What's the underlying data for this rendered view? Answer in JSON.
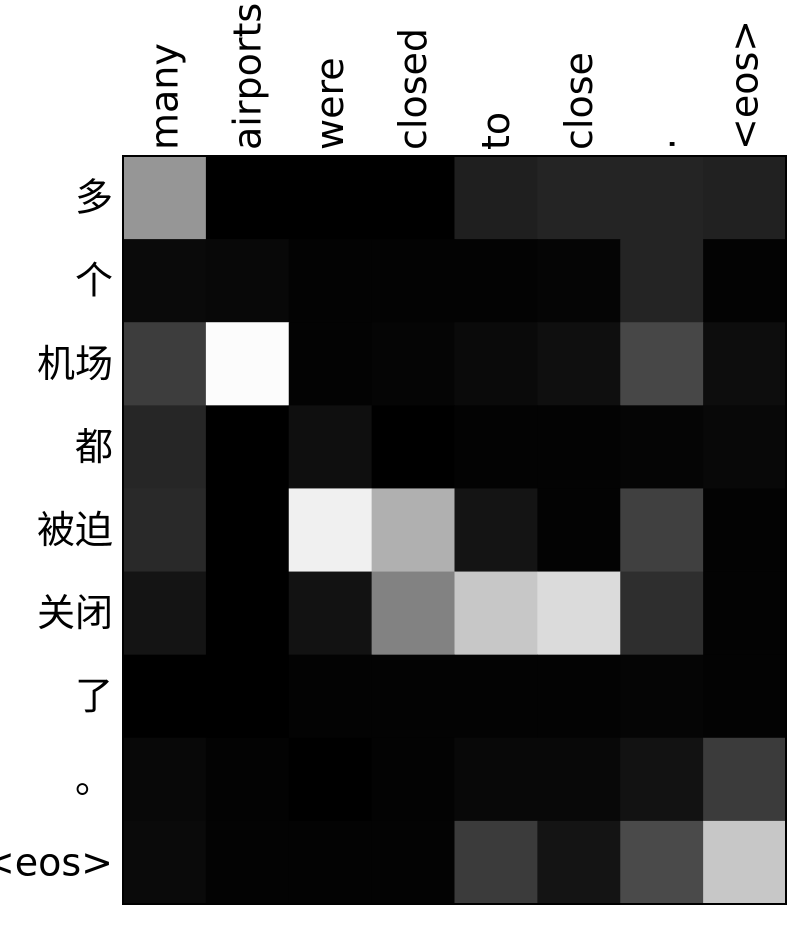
{
  "chart_data": {
    "type": "heatmap",
    "x_labels": [
      "many",
      "airports",
      "were",
      "closed",
      "to",
      "close",
      ".",
      "<eos>"
    ],
    "y_labels": [
      "多",
      "个",
      "机场",
      "都",
      "被迫",
      "关闭",
      "了",
      "。",
      "<eos>"
    ],
    "values": [
      [
        0.59,
        0.0,
        0.0,
        0.0,
        0.12,
        0.14,
        0.14,
        0.13
      ],
      [
        0.04,
        0.03,
        0.01,
        0.01,
        0.01,
        0.02,
        0.14,
        0.01
      ],
      [
        0.24,
        0.99,
        0.01,
        0.02,
        0.04,
        0.06,
        0.28,
        0.05
      ],
      [
        0.15,
        0.0,
        0.06,
        0.0,
        0.01,
        0.01,
        0.02,
        0.03
      ],
      [
        0.16,
        0.0,
        0.94,
        0.69,
        0.08,
        0.01,
        0.25,
        0.01
      ],
      [
        0.08,
        0.0,
        0.07,
        0.51,
        0.78,
        0.86,
        0.18,
        0.01
      ],
      [
        0.0,
        0.0,
        0.01,
        0.01,
        0.01,
        0.01,
        0.02,
        0.01
      ],
      [
        0.03,
        0.01,
        0.0,
        0.01,
        0.03,
        0.03,
        0.07,
        0.23
      ],
      [
        0.04,
        0.01,
        0.01,
        0.01,
        0.23,
        0.08,
        0.29,
        0.78
      ]
    ],
    "colormap": "gray",
    "color_min": "#000000",
    "color_max": "#ffffff",
    "x_labels_position": "top",
    "x_labels_rotation": "vertical",
    "y_labels_position": "left",
    "grid": false,
    "colorbar": false
  }
}
